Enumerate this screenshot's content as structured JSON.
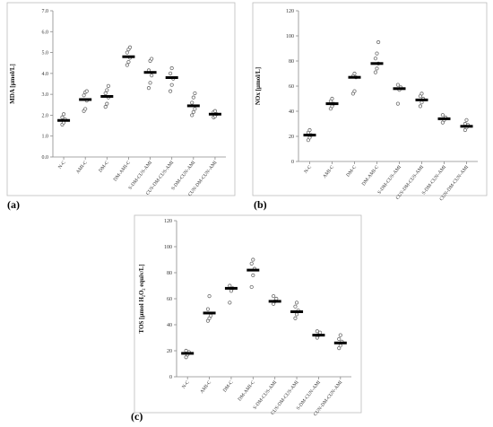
{
  "chart_data": [
    {
      "panel_label": "(a)",
      "type": "scatter",
      "ylabel": "MDA [µmol/L]",
      "ylim": [
        0,
        7
      ],
      "yticks": [
        "0.0",
        "1.0",
        "2.0",
        "3.0",
        "4.0",
        "5.0",
        "6.0",
        "7.0"
      ],
      "categories": [
        "N-C",
        "AMI-C",
        "DM-C",
        "DM-AMI-C",
        "S-DM-CUS-AMI",
        "CUS-DM-CUS-AMI",
        "S-DM-CUN-AMI",
        "CUN-DM-CUN-AMI"
      ],
      "medians": [
        1.75,
        2.75,
        2.9,
        4.8,
        4.05,
        3.8,
        2.45,
        2.05
      ],
      "points": [
        [
          1.55,
          1.65,
          1.8,
          1.9,
          2.05
        ],
        [
          2.2,
          2.3,
          2.7,
          2.95,
          3.1,
          3.15
        ],
        [
          2.4,
          2.55,
          2.85,
          3.05,
          3.2,
          3.4
        ],
        [
          4.4,
          4.55,
          4.75,
          5.0,
          5.15,
          5.25
        ],
        [
          3.3,
          3.55,
          3.9,
          4.15,
          4.6,
          4.7
        ],
        [
          3.15,
          3.45,
          3.75,
          4.0,
          4.25
        ],
        [
          2.0,
          2.15,
          2.3,
          2.6,
          2.85,
          3.05
        ],
        [
          1.9,
          1.95,
          2.05,
          2.15,
          2.2
        ]
      ]
    },
    {
      "panel_label": "(b)",
      "type": "scatter",
      "ylabel": "NOx [µmol/L]",
      "ylim": [
        0,
        120
      ],
      "yticks": [
        "0",
        "20",
        "40",
        "60",
        "80",
        "100",
        "120"
      ],
      "categories": [
        "N-C",
        "AMI-C",
        "DM-C",
        "DM-AMI-C",
        "S-DM-CUS-AMI",
        "CUS-DM-CUS-AMI",
        "S-DM-CUN-AMI",
        "CUN-DM-CUN-AMI"
      ],
      "medians": [
        21,
        46,
        67,
        78,
        58,
        49,
        34,
        28
      ],
      "points": [
        [
          17,
          19,
          21,
          23,
          25
        ],
        [
          42,
          44,
          46,
          48,
          50
        ],
        [
          54,
          56,
          67,
          68,
          70
        ],
        [
          71,
          74,
          78,
          82,
          86,
          95
        ],
        [
          46,
          57,
          59,
          61
        ],
        [
          44,
          47,
          50,
          52,
          54
        ],
        [
          31,
          33,
          35,
          37
        ],
        [
          25,
          27,
          29,
          30,
          33
        ]
      ]
    },
    {
      "panel_label": "(c)",
      "type": "scatter",
      "ylabel": "TOS [µmol H₂O₂ equiv/L]",
      "ylim": [
        0,
        120
      ],
      "yticks": [
        "0",
        "20",
        "40",
        "60",
        "80",
        "100",
        "120"
      ],
      "categories": [
        "N-C",
        "AMI-C",
        "DM-C",
        "DM-AMI-C",
        "S-DM-CUS-AMI",
        "CUS-DM-CUS-AMI",
        "S-DM-CUN-AMI",
        "CUN-DM-CUN-AMI"
      ],
      "medians": [
        18,
        49,
        68,
        82,
        58,
        50,
        32,
        26
      ],
      "points": [
        [
          15,
          17,
          19,
          20
        ],
        [
          43,
          45,
          47,
          52,
          62
        ],
        [
          57,
          66,
          68,
          70
        ],
        [
          69,
          78,
          83,
          87,
          90
        ],
        [
          56,
          58,
          60,
          62
        ],
        [
          45,
          48,
          51,
          54,
          57
        ],
        [
          30,
          32,
          34,
          35
        ],
        [
          22,
          24,
          27,
          29,
          32
        ]
      ]
    }
  ]
}
